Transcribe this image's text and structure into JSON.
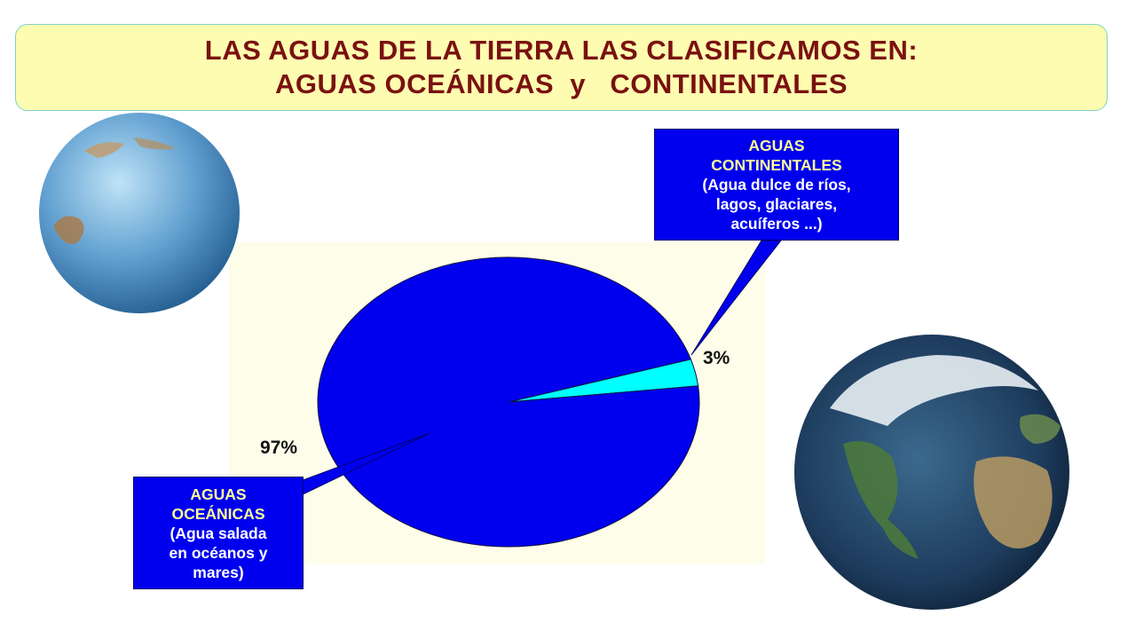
{
  "title": {
    "line1": "LAS AGUAS DE LA TIERRA LAS CLASIFICAMOS EN:",
    "line2": "AGUAS OCEÁNICAS  y   CONTINENTALES"
  },
  "chart_data": {
    "type": "pie",
    "slices": [
      {
        "label": "AGUAS OCEÁNICAS",
        "value": 97,
        "value_label": "97%",
        "color": "#0000ee"
      },
      {
        "label": "AGUAS CONTINENTALES",
        "value": 3,
        "value_label": "3%",
        "color": "#00ffff"
      }
    ]
  },
  "callouts": {
    "continental": {
      "head1": "AGUAS",
      "head2": "CONTINENTALES",
      "body1": "(Agua dulce de ríos,",
      "body2": "lagos, glaciares,",
      "body3": "acuíferos ...)"
    },
    "oceanic": {
      "head1": "AGUAS",
      "head2": "OCEÁNICAS",
      "body1": "(Agua salada",
      "body2": "en océanos y",
      "body3": "mares)"
    }
  },
  "colors": {
    "title_text": "#7a1111",
    "title_bg": "#fdfcb0",
    "callout_bg": "#0000ee",
    "callout_head": "#ffff99"
  }
}
